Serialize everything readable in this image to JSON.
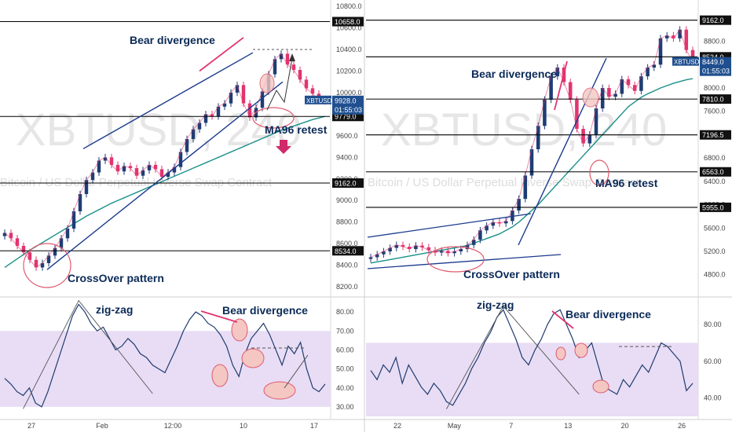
{
  "chart_data": [
    {
      "type": "candlestick",
      "watermark": "XBTUSD, 240",
      "subtitle": "Bitcoin / US Dollar Perpetual Inverse Swap Contract",
      "ylim": [
        8150,
        10800
      ],
      "y_ticks": [
        "10800.0",
        "10600.0",
        "10400.0",
        "10200.0",
        "10000.0",
        "9800.0",
        "9600.0",
        "9400.0",
        "9200.0",
        "9000.0",
        "8800.0",
        "8600.0",
        "8400.0",
        "8200.0"
      ],
      "x_ticks": [
        "27",
        "Feb",
        "12:00",
        "10",
        "17"
      ],
      "levels": [
        {
          "value": 10658.0,
          "label": "10658.0"
        },
        {
          "value": 9779.0,
          "label": "9779.0"
        },
        {
          "value": 9162.0,
          "label": "9162.0"
        },
        {
          "value": 8534.0,
          "label": "8534.0"
        }
      ],
      "price_tag": {
        "symbol": "XBTUSD",
        "value": 9928.0,
        "label": "9928.0",
        "countdown": "01:55:03"
      },
      "dashed_target": 10400,
      "series": [
        {
          "name": "price",
          "values": [
            8700,
            8650,
            8580,
            8520,
            8450,
            8380,
            8420,
            8490,
            8560,
            8650,
            8740,
            8900,
            9060,
            9190,
            9260,
            9370,
            9400,
            9330,
            9270,
            9320,
            9300,
            9230,
            9280,
            9330,
            9290,
            9220,
            9260,
            9310,
            9450,
            9570,
            9660,
            9720,
            9800,
            9780,
            9870,
            9900,
            10000,
            10070,
            9900,
            9770,
            9860,
            10010,
            10170,
            10310,
            10360,
            10260,
            10210,
            10120,
            10040,
            9990,
            9930,
            9920
          ]
        },
        {
          "name": "MA96",
          "values": [
            8380,
            8420,
            8460,
            8500,
            8540,
            8575,
            8610,
            8645,
            8680,
            8715,
            8750,
            8785,
            8820,
            8855,
            8885,
            8915,
            8945,
            8975,
            9000,
            9025,
            9050,
            9075,
            9100,
            9125,
            9150,
            9175,
            9200,
            9225,
            9250,
            9275,
            9300,
            9325,
            9350,
            9375,
            9400,
            9425,
            9450,
            9475,
            9500,
            9525,
            9550,
            9575,
            9600,
            9625,
            9650,
            9670,
            9690,
            9710,
            9730,
            9750,
            9765,
            9780
          ]
        }
      ]
    },
    {
      "type": "candlestick",
      "watermark": "XBTUSD, 240",
      "subtitle": "Bitcoin / US Dollar Perpetual Inverse Swap Contract",
      "ylim": [
        4500,
        9400
      ],
      "y_ticks": [
        "8800.0",
        "8400.0",
        "8000.0",
        "7600.0",
        "7200.0",
        "6800.0",
        "6400.0",
        "6000.0",
        "5600.0",
        "5200.0",
        "4800.0"
      ],
      "x_ticks": [
        "22",
        "May",
        "7",
        "13",
        "20",
        "26"
      ],
      "levels": [
        {
          "value": 9162.0,
          "label": "9162.0"
        },
        {
          "value": 8534.0,
          "label": "8534.0"
        },
        {
          "value": 7810.0,
          "label": "7810.0"
        },
        {
          "value": 7196.5,
          "label": "7196.5"
        },
        {
          "value": 6563.0,
          "label": "6563.0"
        },
        {
          "value": 5955.0,
          "label": "5955.0"
        }
      ],
      "price_tag": {
        "symbol": "XBTUSD",
        "value": 8449.0,
        "label": "8449.0",
        "countdown": "01:55:03"
      },
      "series": [
        {
          "name": "price",
          "values": [
            5100,
            5150,
            5200,
            5260,
            5310,
            5280,
            5240,
            5300,
            5270,
            5220,
            5180,
            5210,
            5170,
            5200,
            5240,
            5310,
            5400,
            5560,
            5640,
            5700,
            5680,
            5720,
            5900,
            6100,
            6500,
            6950,
            7350,
            7800,
            8200,
            8350,
            8100,
            7800,
            7300,
            7050,
            7200,
            7650,
            8000,
            7850,
            7900,
            8150,
            8050,
            7950,
            8200,
            8350,
            8400,
            8850,
            8900,
            8850,
            9000,
            8650,
            8450
          ]
        },
        {
          "name": "MA96",
          "values": [
            5000,
            5020,
            5040,
            5060,
            5080,
            5100,
            5120,
            5140,
            5160,
            5180,
            5200,
            5220,
            5240,
            5260,
            5280,
            5300,
            5340,
            5380,
            5420,
            5460,
            5500,
            5560,
            5620,
            5700,
            5800,
            5900,
            6000,
            6120,
            6240,
            6360,
            6480,
            6600,
            6720,
            6840,
            6960,
            7080,
            7200,
            7320,
            7440,
            7560,
            7680,
            7760,
            7840,
            7900,
            7950,
            8000,
            8040,
            8080,
            8110,
            8140,
            8160
          ]
        }
      ]
    }
  ],
  "rsi": [
    {
      "ylim": [
        25,
        85
      ],
      "y_ticks": [
        "80.00",
        "70.00",
        "60.00",
        "50.00",
        "40.00",
        "30.00"
      ],
      "band": [
        30,
        70
      ],
      "dashed_level": 61,
      "values": [
        45,
        42,
        38,
        36,
        40,
        32,
        30,
        38,
        48,
        58,
        68,
        78,
        84,
        80,
        74,
        70,
        72,
        66,
        60,
        62,
        66,
        63,
        58,
        56,
        52,
        50,
        48,
        55,
        62,
        70,
        76,
        80,
        78,
        74,
        72,
        68,
        62,
        52,
        46,
        58,
        66,
        70,
        74,
        68,
        60,
        52,
        62,
        58,
        64,
        50,
        40,
        38,
        42
      ]
    },
    {
      "ylim": [
        30,
        92
      ],
      "y_ticks": [
        "80.00",
        "60.00",
        "40.00"
      ],
      "band": [
        30,
        70
      ],
      "dashed_level": 68,
      "values": [
        55,
        50,
        58,
        54,
        62,
        48,
        58,
        52,
        46,
        42,
        48,
        44,
        38,
        36,
        42,
        48,
        56,
        62,
        70,
        76,
        84,
        88,
        80,
        72,
        62,
        58,
        66,
        72,
        80,
        86,
        88,
        80,
        72,
        62,
        66,
        70,
        58,
        46,
        44,
        42,
        50,
        46,
        52,
        58,
        54,
        62,
        70,
        68,
        64,
        60,
        44,
        48
      ]
    }
  ],
  "annotations": {
    "left": {
      "bear_divergence": "Bear divergence",
      "ma96_retest": "MA96 retest",
      "crossover": "CrossOver pattern",
      "zigzag": "zig-zag",
      "rsi_bear_divergence": "Bear divergence"
    },
    "right": {
      "bear_divergence": "Bear divergence",
      "ma96_retest": "MA96 retest",
      "crossover": "CrossOver pattern",
      "zigzag": "zig-zag",
      "rsi_bear_divergence": "Bear divergence"
    }
  },
  "colors": {
    "up": "#1f3d73",
    "down": "#e2346f",
    "ma": "#1b8f8a",
    "trend": "#1a3a8c",
    "level": "#000000",
    "rsi": "#1f3b6e",
    "rsi_band": "#e8ddf5",
    "tag": "#1f4f8f",
    "ellipse": "#e05a6e",
    "ann": "#0b2a57",
    "axis_text": "#444444",
    "watermark": "#e6e6e6",
    "arrow": "#d02a6a"
  }
}
